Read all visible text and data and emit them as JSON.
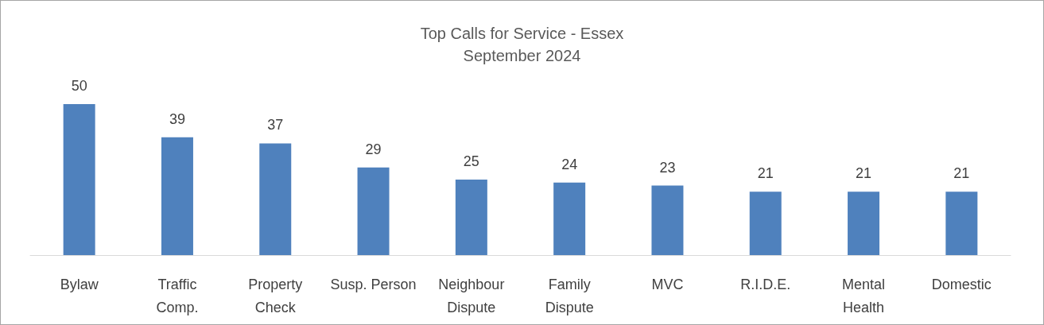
{
  "chart_data": {
    "type": "bar",
    "title": "Top Calls for Service - Essex",
    "subtitle": "September 2024",
    "categories": [
      "Bylaw",
      "Traffic\nComp.",
      "Property\nCheck",
      "Susp. Person",
      "Neighbour\nDispute",
      "Family\nDispute",
      "MVC",
      "R.I.D.E.",
      "Mental\nHealth",
      "Domestic"
    ],
    "values": [
      50,
      39,
      37,
      29,
      25,
      24,
      23,
      21,
      21,
      21
    ],
    "color": "#4f81bd",
    "data_labels": true
  }
}
